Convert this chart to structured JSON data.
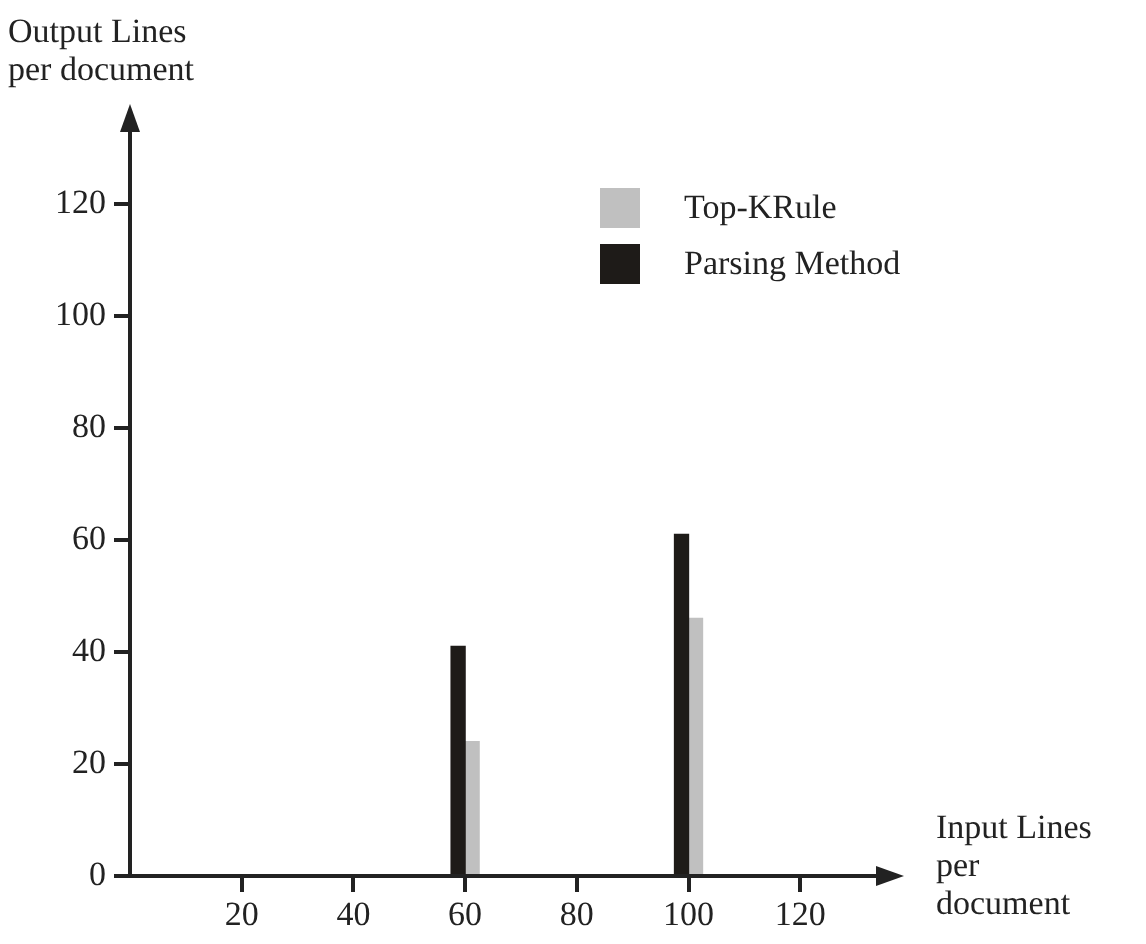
{
  "chart_data": {
    "type": "bar",
    "xlabel": "Input Lines per document",
    "ylabel": "Output Lines per document",
    "x": [
      60,
      100
    ],
    "series": [
      {
        "name": "Parsing Method",
        "color": "#1e1b18",
        "values": [
          41,
          61
        ]
      },
      {
        "name": "Top-KRule",
        "color": "#c0c0c0",
        "values": [
          24,
          46
        ]
      }
    ],
    "xlim": [
      0,
      135
    ],
    "xticks": [
      20,
      40,
      60,
      80,
      100,
      120
    ],
    "ylim": [
      0,
      135
    ],
    "yticks": [
      0,
      20,
      40,
      60,
      80,
      100,
      120
    ],
    "grid": false,
    "legend": "top right"
  }
}
